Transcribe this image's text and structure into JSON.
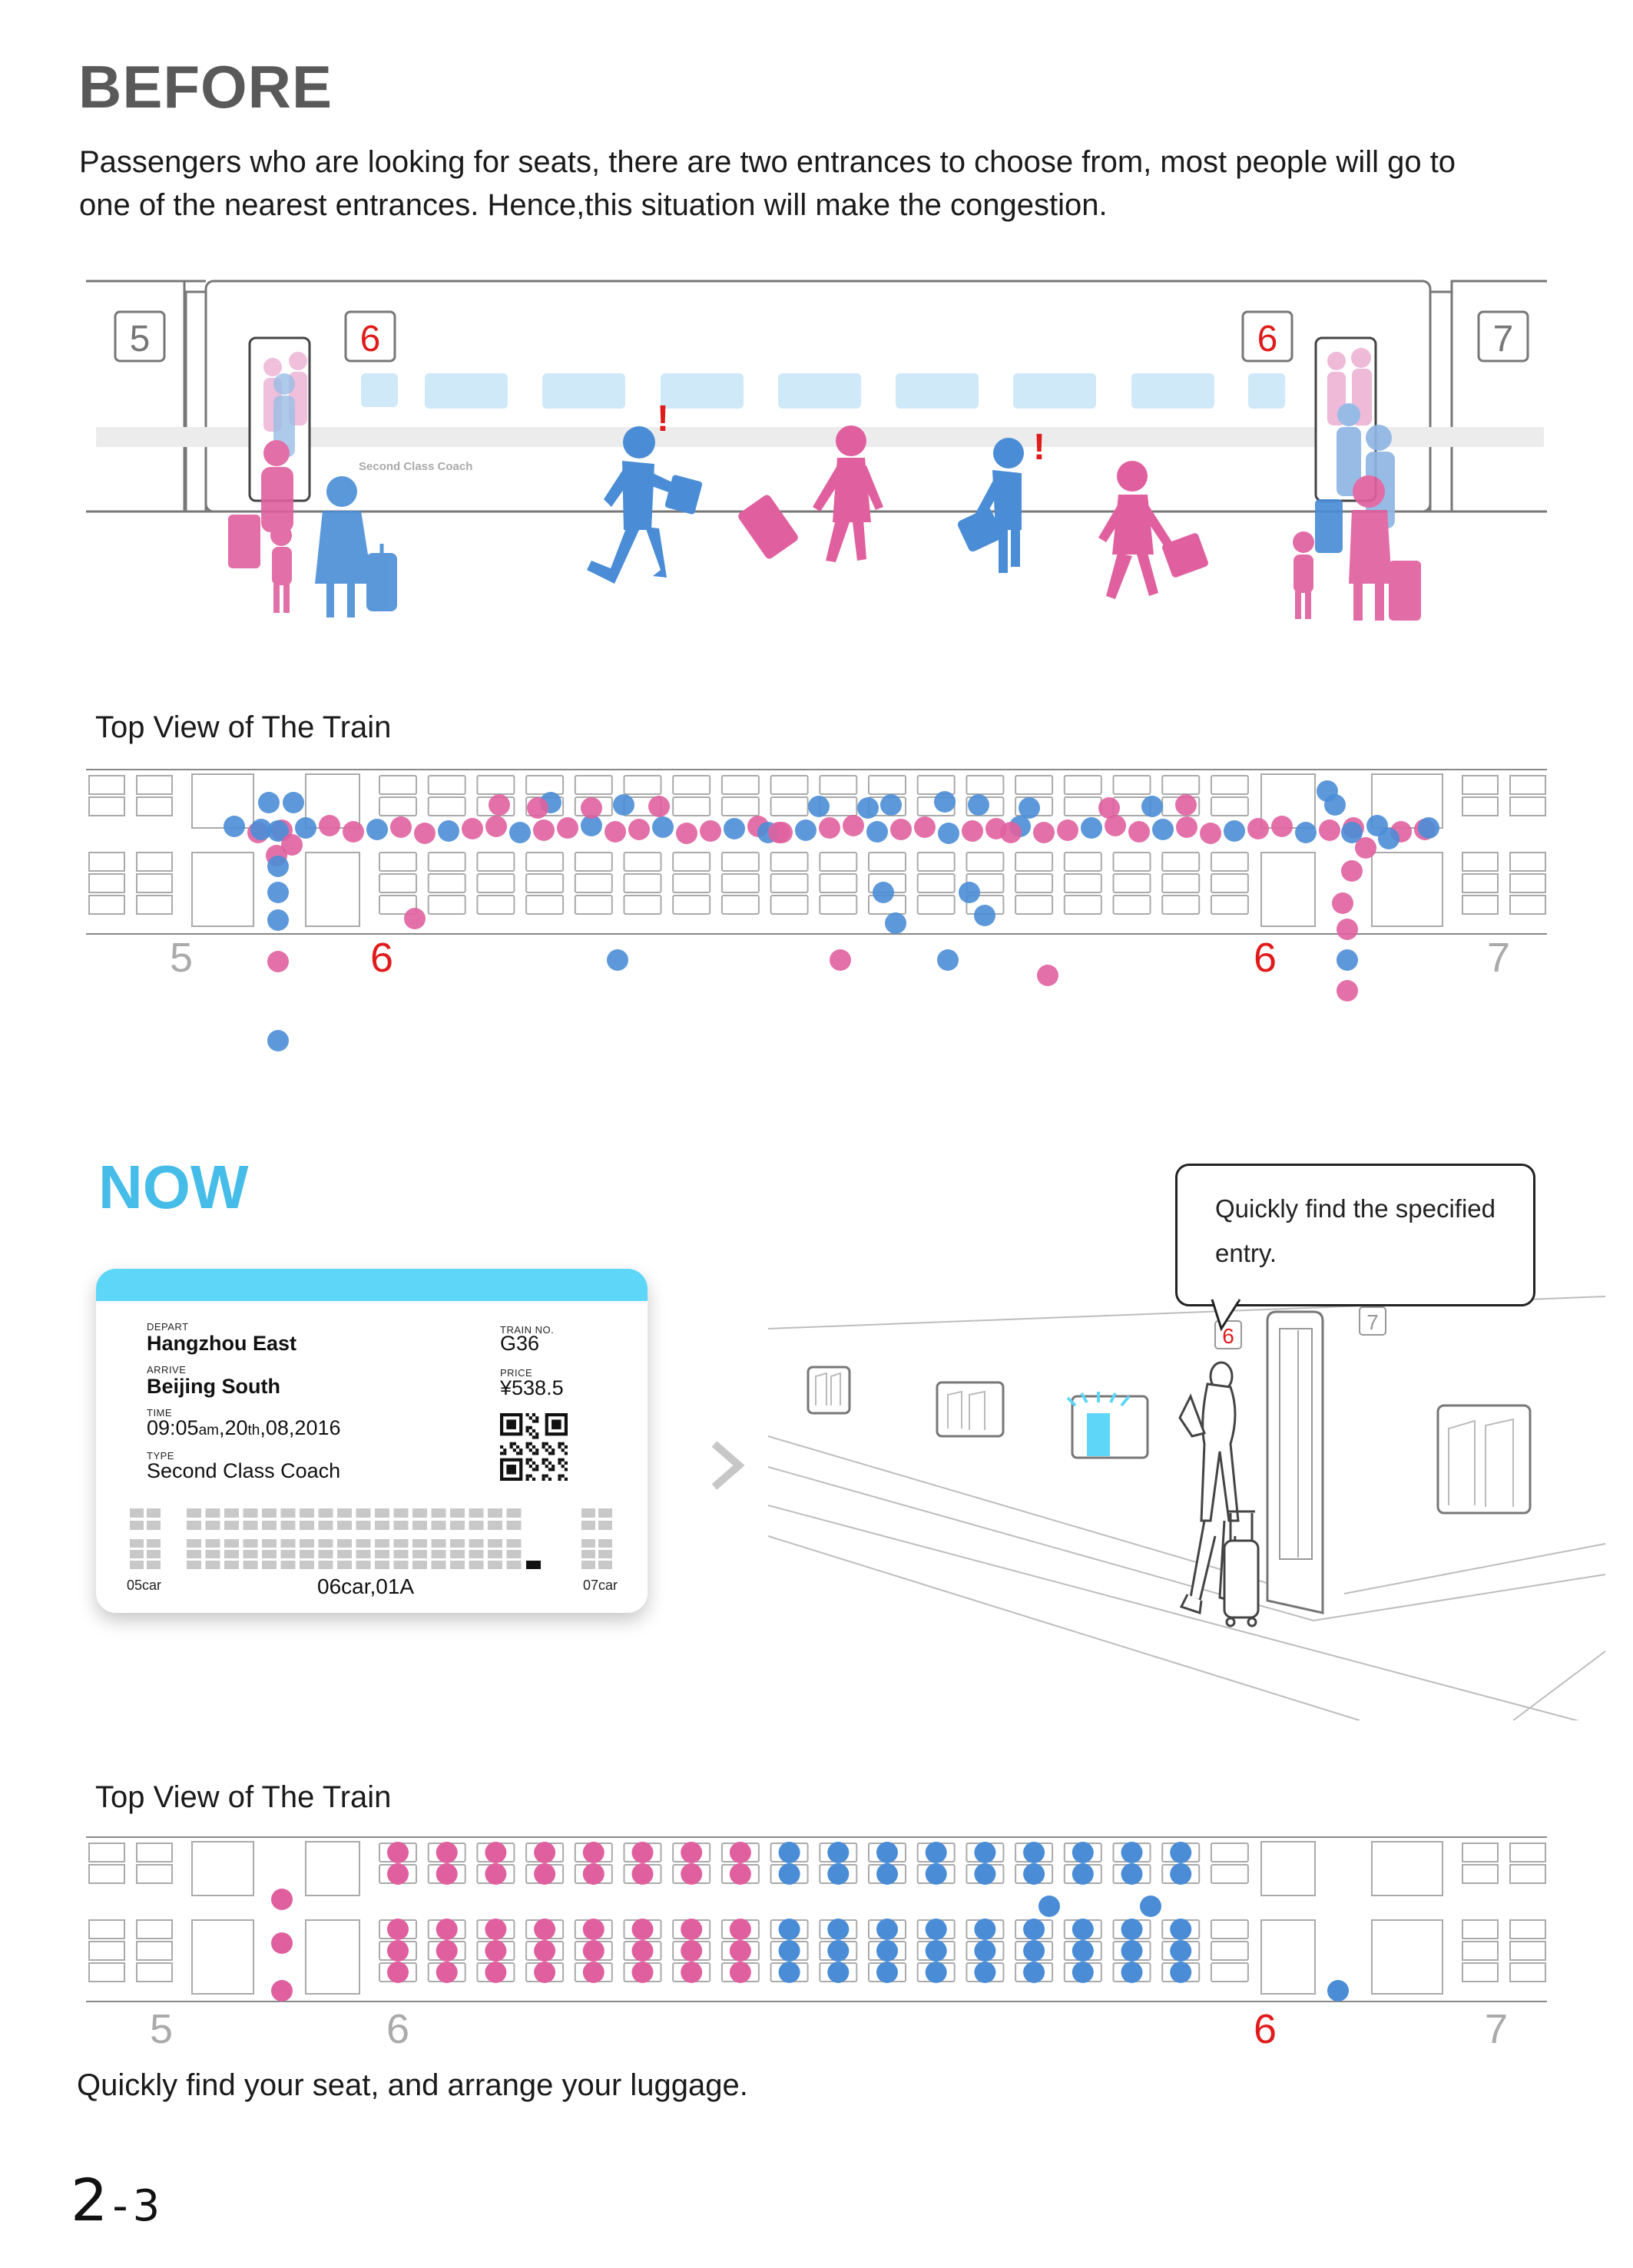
{
  "before": {
    "heading": "BEFORE",
    "description": "Passengers who are looking for seats, there are two entrances to choose from, most people will go to one of the nearest entrances. Hence,this situation will make the congestion.",
    "train": {
      "car_left": "5",
      "car_right": "7",
      "door_left": "6",
      "door_right": "6",
      "coach_label": "Second Class Coach",
      "alert_mark": "!"
    },
    "top_view": {
      "title": "Top View of The Train",
      "car_left": "5",
      "door_left": "6",
      "door_right": "6",
      "car_right": "7"
    }
  },
  "now": {
    "heading": "NOW",
    "bubble_text": "Quickly find the specified entry.",
    "ticket": {
      "depart_label": "DEPART",
      "depart": "Hangzhou East",
      "arrive_label": "ARRIVE",
      "arrive": "Beijing South",
      "time_label": "TIME",
      "time_main": "09:05",
      "time_am": "am",
      "time_day": ",20",
      "time_th": "th",
      "time_rest": ",08,2016",
      "type_label": "TYPE",
      "type": "Second Class Coach",
      "train_no_label": "TRAIN NO.",
      "train_no": "G36",
      "price_label": "PRICE",
      "price": "¥538.5",
      "car_prev": "05car",
      "seat": "06car,01A",
      "car_next": "07car"
    },
    "illustration": {
      "door_sign": "6",
      "next_sign": "7"
    },
    "top_view": {
      "title": "Top View of The Train",
      "car_left": "5",
      "door_left": "6",
      "door_right": "6",
      "car_right": "7"
    },
    "footer": "Quickly find your seat, and arrange your luggage."
  },
  "page": {
    "number_big": "2",
    "number_dash": "-",
    "number_small": "3"
  },
  "colors": {
    "pink": "#e0609f",
    "blue": "#4a8dd6",
    "accent_red": "#e01b1b",
    "now_blue": "#45bde8",
    "ticket_bar": "#5dd6f7"
  }
}
